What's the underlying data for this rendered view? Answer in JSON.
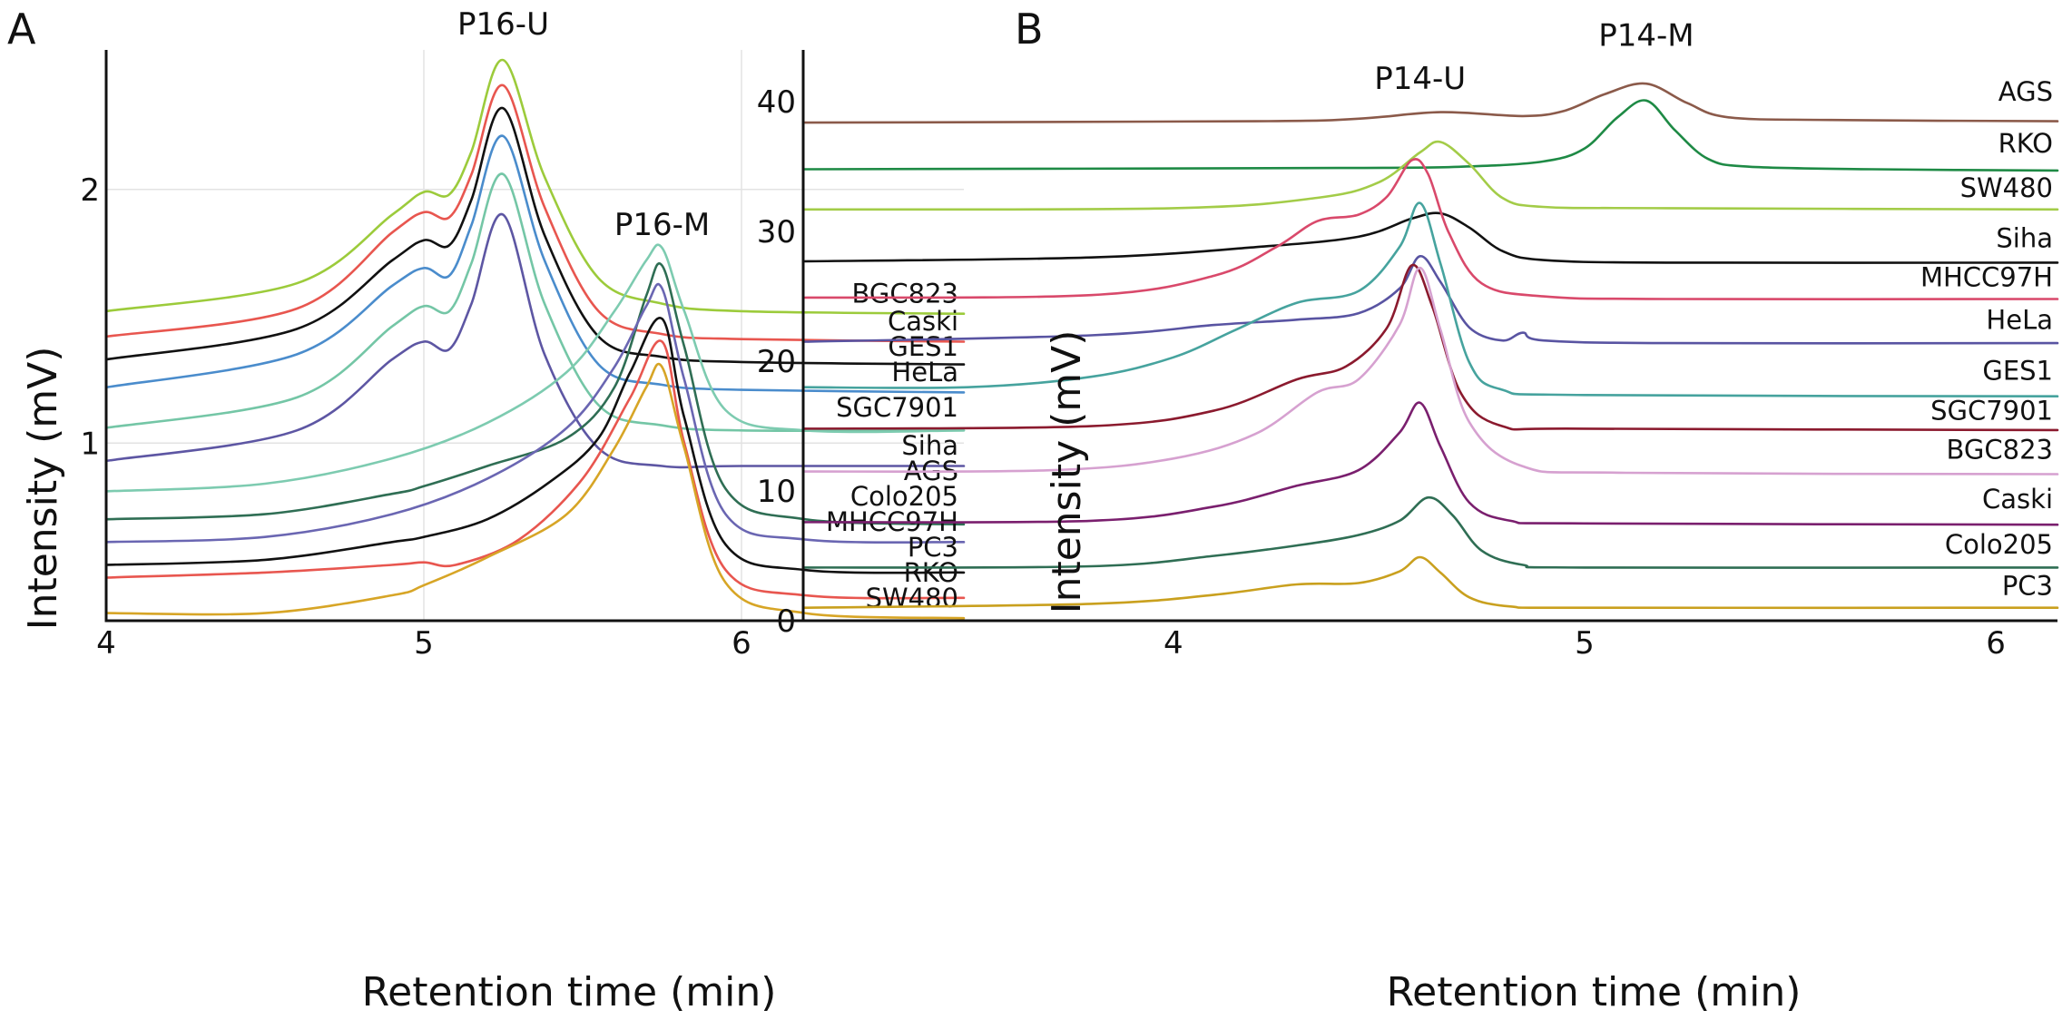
{
  "chart_data": [
    {
      "panel": "A",
      "type": "line",
      "xlabel": "Retention time (min)",
      "ylabel": "Intensity (mV)",
      "xlim": [
        4,
        6.7
      ],
      "ylim": [
        0.3,
        2.55
      ],
      "xticks": [
        "4",
        "5",
        "6"
      ],
      "yticks": [
        "1",
        "2"
      ],
      "grid": true,
      "peak_labels": [
        {
          "text": "P16-U",
          "x": 5.25,
          "y": 2.61
        },
        {
          "text": "P16-M",
          "x": 5.75,
          "y": 1.82
        }
      ],
      "series": [
        {
          "name": "BGC823",
          "color": "#9ccb3b",
          "x": [
            4.0,
            4.6,
            4.9,
            5.0,
            5.08,
            5.15,
            5.25,
            5.38,
            5.55,
            5.75,
            6.0,
            6.7
          ],
          "y": [
            1.52,
            1.63,
            1.9,
            1.99,
            1.98,
            2.15,
            2.51,
            2.05,
            1.65,
            1.55,
            1.52,
            1.51
          ]
        },
        {
          "name": "Caski",
          "color": "#e8564f",
          "x": [
            4.0,
            4.6,
            4.9,
            5.0,
            5.08,
            5.15,
            5.25,
            5.38,
            5.55,
            5.75,
            6.0,
            6.7
          ],
          "y": [
            1.42,
            1.53,
            1.83,
            1.91,
            1.89,
            2.06,
            2.41,
            1.93,
            1.52,
            1.43,
            1.41,
            1.4
          ]
        },
        {
          "name": "GES1",
          "color": "#111111",
          "x": [
            4.0,
            4.6,
            4.9,
            5.0,
            5.08,
            5.15,
            5.25,
            5.38,
            5.55,
            5.75,
            6.0,
            6.7
          ],
          "y": [
            1.33,
            1.45,
            1.72,
            1.8,
            1.78,
            1.96,
            2.32,
            1.82,
            1.42,
            1.34,
            1.32,
            1.31
          ]
        },
        {
          "name": "HeLa",
          "color": "#4a8ccc",
          "x": [
            4.0,
            4.6,
            4.9,
            5.0,
            5.08,
            5.15,
            5.25,
            5.38,
            5.55,
            5.75,
            6.0,
            6.7
          ],
          "y": [
            1.22,
            1.35,
            1.62,
            1.69,
            1.66,
            1.86,
            2.21,
            1.72,
            1.31,
            1.23,
            1.21,
            1.2
          ]
        },
        {
          "name": "SGC7901",
          "color": "#74c6a6",
          "x": [
            4.0,
            4.6,
            4.9,
            5.0,
            5.08,
            5.15,
            5.25,
            5.38,
            5.55,
            5.75,
            6.0,
            6.7
          ],
          "y": [
            1.06,
            1.18,
            1.46,
            1.54,
            1.52,
            1.71,
            2.06,
            1.55,
            1.15,
            1.07,
            1.05,
            1.05
          ]
        },
        {
          "name": "Siha",
          "color": "#5d56a3",
          "x": [
            4.0,
            4.6,
            4.9,
            5.0,
            5.08,
            5.15,
            5.25,
            5.38,
            5.55,
            5.75,
            6.0,
            6.7
          ],
          "y": [
            0.93,
            1.05,
            1.33,
            1.4,
            1.37,
            1.55,
            1.9,
            1.35,
            0.98,
            0.91,
            0.91,
            0.91
          ]
        },
        {
          "name": "AGS",
          "color": "#7dcbb0",
          "x": [
            4.0,
            4.5,
            4.9,
            5.2,
            5.45,
            5.6,
            5.7,
            5.75,
            5.82,
            5.95,
            6.2,
            6.7
          ],
          "y": [
            0.81,
            0.84,
            0.94,
            1.08,
            1.28,
            1.52,
            1.72,
            1.77,
            1.52,
            1.13,
            1.05,
            1.05
          ]
        },
        {
          "name": "Colo205",
          "color": "#2f6e54",
          "x": [
            4.0,
            4.5,
            4.9,
            5.0,
            5.2,
            5.45,
            5.6,
            5.7,
            5.75,
            5.82,
            5.95,
            6.2,
            6.7
          ],
          "y": [
            0.7,
            0.72,
            0.8,
            0.83,
            0.91,
            1.02,
            1.22,
            1.58,
            1.7,
            1.38,
            0.82,
            0.7,
            0.68
          ]
        },
        {
          "name": "MHCC97H",
          "color": "#6a66b2",
          "x": [
            4.0,
            4.5,
            4.9,
            5.2,
            5.45,
            5.6,
            5.7,
            5.75,
            5.82,
            5.95,
            6.2,
            6.7
          ],
          "y": [
            0.61,
            0.63,
            0.72,
            0.86,
            1.06,
            1.3,
            1.54,
            1.61,
            1.25,
            0.72,
            0.62,
            0.61
          ]
        },
        {
          "name": "PC3",
          "color": "#111111",
          "x": [
            4.0,
            4.5,
            4.9,
            5.0,
            5.2,
            5.4,
            5.55,
            5.65,
            5.75,
            5.82,
            5.95,
            6.2,
            6.7
          ],
          "y": [
            0.52,
            0.54,
            0.61,
            0.63,
            0.7,
            0.85,
            1.02,
            1.28,
            1.49,
            1.1,
            0.6,
            0.5,
            0.49
          ]
        },
        {
          "name": "RKO",
          "color": "#e8564f",
          "x": [
            4.0,
            4.5,
            4.9,
            5.0,
            5.1,
            5.3,
            5.5,
            5.65,
            5.75,
            5.82,
            5.95,
            6.2,
            6.7
          ],
          "y": [
            0.47,
            0.49,
            0.52,
            0.53,
            0.52,
            0.62,
            0.86,
            1.18,
            1.4,
            1.0,
            0.5,
            0.4,
            0.39
          ]
        },
        {
          "name": "SW480",
          "color": "#d7a526",
          "x": [
            4.0,
            4.5,
            4.9,
            5.0,
            5.2,
            5.45,
            5.6,
            5.7,
            5.75,
            5.82,
            5.95,
            6.2,
            6.7
          ],
          "y": [
            0.33,
            0.33,
            0.4,
            0.44,
            0.55,
            0.72,
            0.98,
            1.22,
            1.3,
            0.98,
            0.45,
            0.33,
            0.31
          ]
        }
      ],
      "series_labels": [
        {
          "name": "BGC823",
          "y": 1.54
        },
        {
          "name": "Caski",
          "y": 1.43
        },
        {
          "name": "GES1",
          "y": 1.33
        },
        {
          "name": "HeLa",
          "y": 1.23
        },
        {
          "name": "SGC7901",
          "y": 1.09
        },
        {
          "name": "Siha",
          "y": 0.94
        },
        {
          "name": "AGS",
          "y": 0.84
        },
        {
          "name": "Colo205",
          "y": 0.74
        },
        {
          "name": "MHCC97H",
          "y": 0.64
        },
        {
          "name": "PC3",
          "y": 0.54
        },
        {
          "name": "RKO",
          "y": 0.44
        },
        {
          "name": "SW480",
          "y": 0.34
        }
      ]
    },
    {
      "panel": "B",
      "type": "line",
      "xlabel": "Retention time (min)",
      "ylabel": "Intensity (mV)",
      "xlim": [
        3.1,
        6.15
      ],
      "ylim": [
        0,
        44
      ],
      "xticks": [
        "4",
        "5",
        "6"
      ],
      "yticks": [
        "0",
        "10",
        "20",
        "30",
        "40"
      ],
      "grid": false,
      "peak_labels": [
        {
          "text": "P14-U",
          "x": 4.6,
          "y": 41.0
        },
        {
          "text": "P14-M",
          "x": 5.15,
          "y": 44.3
        }
      ],
      "series": [
        {
          "name": "AGS",
          "color": "#8b5a4a",
          "x": [
            3.1,
            4.2,
            4.45,
            4.65,
            4.85,
            4.95,
            5.05,
            5.15,
            5.25,
            5.35,
            5.6,
            6.15
          ],
          "y": [
            38.4,
            38.5,
            38.7,
            39.2,
            38.9,
            39.3,
            40.6,
            41.4,
            39.9,
            38.8,
            38.6,
            38.5
          ]
        },
        {
          "name": "RKO",
          "color": "#1e8a45",
          "x": [
            3.1,
            4.4,
            4.7,
            4.9,
            5.0,
            5.08,
            5.15,
            5.22,
            5.3,
            5.4,
            5.7,
            6.15
          ],
          "y": [
            34.8,
            34.9,
            35.0,
            35.4,
            36.4,
            38.8,
            40.1,
            37.8,
            35.6,
            35.0,
            34.8,
            34.7
          ]
        },
        {
          "name": "SW480",
          "color": "#a3cc48",
          "x": [
            3.1,
            4.0,
            4.35,
            4.5,
            4.6,
            4.65,
            4.72,
            4.8,
            4.9,
            5.2,
            6.15
          ],
          "y": [
            31.7,
            31.8,
            32.6,
            33.8,
            36.1,
            36.9,
            35.2,
            32.6,
            31.9,
            31.8,
            31.7
          ]
        },
        {
          "name": "Siha",
          "color": "#111111",
          "x": [
            3.1,
            3.8,
            4.2,
            4.45,
            4.58,
            4.65,
            4.72,
            4.8,
            4.9,
            5.2,
            6.15
          ],
          "y": [
            27.7,
            28.0,
            28.8,
            29.6,
            31.0,
            31.4,
            30.3,
            28.5,
            27.8,
            27.6,
            27.6
          ]
        },
        {
          "name": "MHCC97H",
          "color": "#d9496b",
          "x": [
            3.1,
            3.8,
            4.1,
            4.25,
            4.35,
            4.45,
            4.52,
            4.58,
            4.62,
            4.67,
            4.75,
            4.9,
            5.2,
            6.15
          ],
          "y": [
            24.9,
            25.1,
            26.6,
            28.8,
            30.8,
            31.3,
            32.7,
            35.5,
            34.4,
            29.9,
            26.0,
            25.0,
            24.8,
            24.8
          ]
        },
        {
          "name": "HeLa",
          "color": "#5954a2",
          "x": [
            3.1,
            3.8,
            4.1,
            4.3,
            4.45,
            4.55,
            4.6,
            4.65,
            4.72,
            4.8,
            4.85,
            4.9,
            5.2,
            6.15
          ],
          "y": [
            21.5,
            22.0,
            22.8,
            23.2,
            23.7,
            25.6,
            28.1,
            26.1,
            22.6,
            21.6,
            22.2,
            21.6,
            21.4,
            21.4
          ]
        },
        {
          "name": "GES1",
          "color": "#46a39e",
          "x": [
            3.1,
            3.5,
            3.8,
            4.0,
            4.15,
            4.3,
            4.45,
            4.55,
            4.6,
            4.65,
            4.72,
            4.8,
            5.0,
            6.15
          ],
          "y": [
            18.0,
            18.0,
            18.8,
            20.3,
            22.4,
            24.5,
            25.4,
            28.8,
            32.2,
            27.5,
            19.9,
            17.8,
            17.4,
            17.3
          ]
        },
        {
          "name": "SGC7901",
          "color": "#8b1a2e",
          "x": [
            3.1,
            3.8,
            4.1,
            4.3,
            4.42,
            4.52,
            4.58,
            4.63,
            4.7,
            4.8,
            5.0,
            6.15
          ],
          "y": [
            14.8,
            15.0,
            16.2,
            18.6,
            19.6,
            22.6,
            27.4,
            24.2,
            17.5,
            15.0,
            14.8,
            14.7
          ]
        },
        {
          "name": "BGC823",
          "color": "#d6a1d0",
          "x": [
            3.1,
            3.7,
            4.0,
            4.2,
            4.35,
            4.45,
            4.55,
            4.6,
            4.65,
            4.72,
            4.85,
            5.1,
            6.15
          ],
          "y": [
            11.5,
            11.6,
            12.5,
            14.4,
            17.6,
            18.6,
            22.8,
            27.2,
            22.4,
            15.3,
            11.9,
            11.4,
            11.3
          ]
        },
        {
          "name": "Caski",
          "color": "#7a1f6e",
          "x": [
            3.1,
            3.8,
            4.1,
            4.3,
            4.45,
            4.55,
            4.6,
            4.65,
            4.72,
            4.82,
            5.0,
            6.15
          ],
          "y": [
            7.6,
            7.7,
            8.8,
            10.4,
            11.6,
            14.5,
            16.8,
            13.4,
            9.1,
            7.7,
            7.5,
            7.4
          ]
        },
        {
          "name": "Colo205",
          "color": "#2f6e54",
          "x": [
            3.1,
            3.8,
            4.1,
            4.3,
            4.45,
            4.55,
            4.62,
            4.68,
            4.75,
            4.85,
            5.0,
            6.15
          ],
          "y": [
            4.1,
            4.2,
            5.0,
            5.8,
            6.6,
            7.7,
            9.5,
            8.1,
            5.4,
            4.3,
            4.1,
            4.1
          ]
        },
        {
          "name": "PC3",
          "color": "#c9a01e",
          "x": [
            3.1,
            3.8,
            4.1,
            4.3,
            4.45,
            4.55,
            4.6,
            4.65,
            4.72,
            4.82,
            5.0,
            6.15
          ],
          "y": [
            1.0,
            1.3,
            2.0,
            2.8,
            2.9,
            3.8,
            4.9,
            3.7,
            1.8,
            1.1,
            1.0,
            1.0
          ]
        }
      ],
      "series_labels": [
        {
          "name": "AGS",
          "y": 39.8
        },
        {
          "name": "RKO",
          "y": 35.8
        },
        {
          "name": "SW480",
          "y": 32.4
        },
        {
          "name": "Siha",
          "y": 28.5
        },
        {
          "name": "MHCC97H",
          "y": 25.5
        },
        {
          "name": "HeLa",
          "y": 22.2
        },
        {
          "name": "GES1",
          "y": 18.3
        },
        {
          "name": "SGC7901",
          "y": 15.2
        },
        {
          "name": "BGC823",
          "y": 12.2
        },
        {
          "name": "Caski",
          "y": 8.4
        },
        {
          "name": "Colo205",
          "y": 4.9
        },
        {
          "name": "PC3",
          "y": 1.7
        }
      ]
    }
  ]
}
